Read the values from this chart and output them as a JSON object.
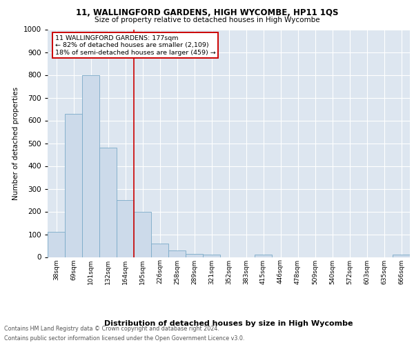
{
  "title1": "11, WALLINGFORD GARDENS, HIGH WYCOMBE, HP11 1QS",
  "title2": "Size of property relative to detached houses in High Wycombe",
  "xlabel": "Distribution of detached houses by size in High Wycombe",
  "ylabel": "Number of detached properties",
  "bin_labels": [
    "38sqm",
    "69sqm",
    "101sqm",
    "132sqm",
    "164sqm",
    "195sqm",
    "226sqm",
    "258sqm",
    "289sqm",
    "321sqm",
    "352sqm",
    "383sqm",
    "415sqm",
    "446sqm",
    "478sqm",
    "509sqm",
    "540sqm",
    "572sqm",
    "603sqm",
    "635sqm",
    "666sqm"
  ],
  "bar_values": [
    110,
    630,
    800,
    480,
    250,
    200,
    60,
    30,
    15,
    10,
    0,
    0,
    10,
    0,
    0,
    0,
    0,
    0,
    0,
    0,
    10
  ],
  "bar_color": "#ccdaea",
  "bar_edge_color": "#7aaac8",
  "ylim": [
    0,
    1000
  ],
  "yticks": [
    0,
    100,
    200,
    300,
    400,
    500,
    600,
    700,
    800,
    900,
    1000
  ],
  "vline_x": 4.5,
  "annotation_title": "11 WALLINGFORD GARDENS: 177sqm",
  "annotation_line1": "← 82% of detached houses are smaller (2,109)",
  "annotation_line2": "18% of semi-detached houses are larger (459) →",
  "annotation_box_color": "#ffffff",
  "annotation_box_edge": "#cc0000",
  "vline_color": "#cc0000",
  "footer1": "Contains HM Land Registry data © Crown copyright and database right 2024.",
  "footer2": "Contains public sector information licensed under the Open Government Licence v3.0.",
  "background_color": "#dde6f0",
  "plot_background": "#ffffff"
}
